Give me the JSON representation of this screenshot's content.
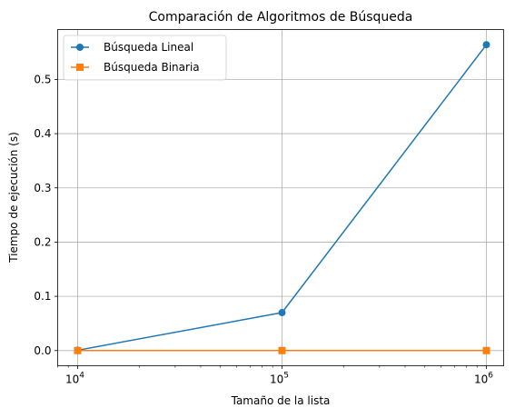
{
  "chart_data": {
    "type": "line",
    "title": "Comparación de Algoritmos de Búsqueda",
    "xlabel": "Tamaño de la lista",
    "ylabel": "Tiempo de ejecución (s)",
    "xscale": "log",
    "x": [
      10000,
      100000,
      1000000
    ],
    "x_tick_labels": [
      {
        "base": "10",
        "exp": "4"
      },
      {
        "base": "10",
        "exp": "5"
      },
      {
        "base": "10",
        "exp": "6"
      }
    ],
    "ylim": [
      -0.028,
      0.592
    ],
    "y_ticks": [
      0.0,
      0.1,
      0.2,
      0.3,
      0.4,
      0.5
    ],
    "y_tick_labels": [
      "0.0",
      "0.1",
      "0.2",
      "0.3",
      "0.4",
      "0.5"
    ],
    "grid": true,
    "legend_position": "top-left",
    "series": [
      {
        "name": "Búsqueda Lineal",
        "marker": "circle",
        "color": "#1f77b4",
        "values": [
          0.0006,
          0.07,
          0.564
        ]
      },
      {
        "name": "Búsqueda Binaria",
        "marker": "square",
        "color": "#ff7f0e",
        "values": [
          0.0,
          0.0,
          0.0
        ]
      }
    ]
  }
}
